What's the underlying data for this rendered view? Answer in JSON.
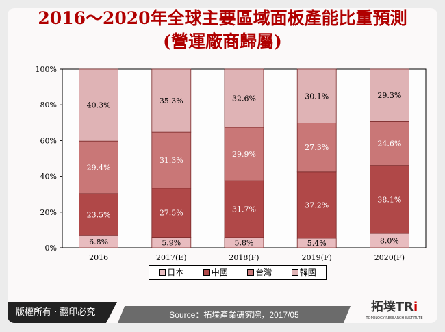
{
  "chart_data": {
    "type": "bar",
    "stacked": true,
    "title": "2016～2020年全球主要區域面板產能比重預測",
    "subtitle": "(營運廠商歸屬)",
    "categories": [
      "2016",
      "2017(E)",
      "2018(F)",
      "2019(F)",
      "2020(F)"
    ],
    "yticks": [
      "0%",
      "20%",
      "40%",
      "60%",
      "80%",
      "100%"
    ],
    "ylim": [
      0,
      100
    ],
    "legend_position": "bottom",
    "series": [
      {
        "name": "日本",
        "color": "#e8bcbf",
        "text_color": "#000",
        "values": [
          6.8,
          5.9,
          5.8,
          5.4,
          8.0
        ],
        "labels": [
          "6.8%",
          "5.9%",
          "5.8%",
          "5.4%",
          "8.0%"
        ]
      },
      {
        "name": "中國",
        "color": "#b04848",
        "text_color": "#fff",
        "values": [
          23.5,
          27.5,
          31.7,
          37.2,
          38.1
        ],
        "labels": [
          "23.5%",
          "27.5%",
          "31.7%",
          "37.2%",
          "38.1%"
        ]
      },
      {
        "name": "台灣",
        "color": "#c97777",
        "text_color": "#fff",
        "values": [
          29.4,
          31.3,
          29.9,
          27.3,
          24.6
        ],
        "labels": [
          "29.4%",
          "31.3%",
          "29.9%",
          "27.3%",
          "24.6%"
        ]
      },
      {
        "name": "韓國",
        "color": "#dfb3b5",
        "text_color": "#000",
        "values": [
          40.3,
          35.3,
          32.6,
          30.1,
          29.3
        ],
        "labels": [
          "40.3%",
          "35.3%",
          "32.6%",
          "30.1%",
          "29.3%"
        ]
      }
    ]
  },
  "footer": {
    "copyright": "版權所有 · 翻印必究",
    "source": "Source：拓墣產業研究院，2017/05",
    "logo_text": "拓墣TRi",
    "logo_sub": "TOPOLOGY RESEARCH INSTITUTE"
  }
}
